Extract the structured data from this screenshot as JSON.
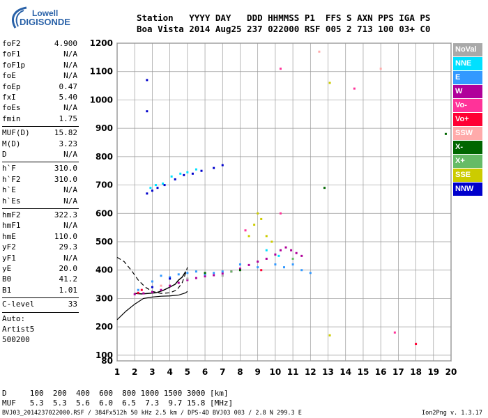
{
  "logo": {
    "line1": "Lowell",
    "line2": "DIGISONDE"
  },
  "header": {
    "line1": "Station   YYYY DAY   DDD HHMMSS P1  FFS S AXN PPS IGA PS",
    "line2": "Boa Vista 2014 Aug25 237 022000 RSF 005 2 713 100 03+ C0"
  },
  "params": {
    "group1": [
      {
        "k": "foF2",
        "v": "4.900"
      },
      {
        "k": "foF1",
        "v": "N/A"
      },
      {
        "k": "foF1p",
        "v": "N/A"
      },
      {
        "k": "foE",
        "v": "N/A"
      },
      {
        "k": "foEp",
        "v": "0.47"
      },
      {
        "k": "fxI",
        "v": "5.40"
      },
      {
        "k": "foEs",
        "v": "N/A"
      },
      {
        "k": "fmin",
        "v": "1.75"
      }
    ],
    "group2": [
      {
        "k": "MUF(D)",
        "v": "15.82"
      },
      {
        "k": "M(D)",
        "v": "3.23"
      },
      {
        "k": "D",
        "v": "N/A"
      }
    ],
    "group3": [
      {
        "k": "h`F",
        "v": "310.0"
      },
      {
        "k": "h`F2",
        "v": "310.0"
      },
      {
        "k": "h`E",
        "v": "N/A"
      },
      {
        "k": "h`Es",
        "v": "N/A"
      }
    ],
    "group4": [
      {
        "k": "hmF2",
        "v": "322.3"
      },
      {
        "k": "hmF1",
        "v": "N/A"
      },
      {
        "k": "hmE",
        "v": "110.0"
      },
      {
        "k": "yF2",
        "v": "29.3"
      },
      {
        "k": "yF1",
        "v": "N/A"
      },
      {
        "k": "yE",
        "v": "20.0"
      },
      {
        "k": "B0",
        "v": "41.2"
      },
      {
        "k": "B1",
        "v": "1.01"
      }
    ],
    "clevel": {
      "k": "C-level",
      "v": "33"
    },
    "auto": [
      "Auto:",
      "Artist5",
      "500200"
    ]
  },
  "legend": [
    {
      "label": "NoVal",
      "color": "#a9a9a9"
    },
    {
      "label": "NNE",
      "color": "#00e0ff"
    },
    {
      "label": "E",
      "color": "#3399ff"
    },
    {
      "label": "W",
      "color": "#b0009a"
    },
    {
      "label": "Vo-",
      "color": "#ff3399"
    },
    {
      "label": "Vo+",
      "color": "#ff0033"
    },
    {
      "label": "SSW",
      "color": "#ffaaaa"
    },
    {
      "label": "X-",
      "color": "#006600"
    },
    {
      "label": "X+",
      "color": "#66bb66"
    },
    {
      "label": "SSE",
      "color": "#cccc00"
    },
    {
      "label": "NNW",
      "color": "#0000cc"
    }
  ],
  "bottom": {
    "line1": "D     100  200  400  600  800 1000 1500 3000 [km]",
    "line2": "MUF   5.3  5.3  5.6  6.0  6.5  7.3  9.7 15.8 [MHz]"
  },
  "footer": {
    "left": "BVJ03_2014237022000.RSF / 384Fx512h 50 kHz 2.5 km / DPS-4D BVJ03 003 / 2.8 N 299.3 E",
    "right": "Ion2Png v. 1.3.17"
  },
  "chart_data": {
    "type": "scatter",
    "title": "",
    "xlabel": "",
    "ylabel": "",
    "xlim": [
      1,
      20
    ],
    "ylim": [
      80,
      1200
    ],
    "x_ticks": [
      1,
      2,
      3,
      4,
      5,
      6,
      7,
      8,
      9,
      10,
      11,
      12,
      13,
      14,
      15,
      16,
      17,
      18,
      19,
      20
    ],
    "y_ticks": [
      80,
      100,
      200,
      300,
      400,
      500,
      600,
      700,
      800,
      900,
      1000,
      1100,
      1200
    ],
    "grid": true,
    "series": [
      {
        "name": "W",
        "color": "#b0009a",
        "points": [
          [
            2.0,
            315
          ],
          [
            2.5,
            318
          ],
          [
            3.0,
            322
          ],
          [
            3.5,
            330
          ],
          [
            4.0,
            345
          ],
          [
            4.5,
            355
          ],
          [
            5.0,
            365
          ],
          [
            5.5,
            372
          ],
          [
            6.0,
            378
          ],
          [
            6.5,
            382
          ],
          [
            7.0,
            388
          ],
          [
            7.5,
            395
          ],
          [
            8.0,
            405
          ],
          [
            8.5,
            418
          ],
          [
            9.0,
            430
          ],
          [
            9.5,
            440
          ],
          [
            10.0,
            455
          ],
          [
            10.3,
            470
          ],
          [
            10.6,
            480
          ],
          [
            10.9,
            470
          ],
          [
            11.2,
            460
          ],
          [
            11.5,
            450
          ]
        ]
      },
      {
        "name": "E",
        "color": "#3399ff",
        "points": [
          [
            2.2,
            330
          ],
          [
            3.0,
            360
          ],
          [
            3.5,
            380
          ],
          [
            4.0,
            375
          ],
          [
            4.5,
            385
          ],
          [
            5.0,
            390
          ],
          [
            5.5,
            395
          ],
          [
            6.0,
            385
          ],
          [
            6.5,
            390
          ],
          [
            7.0,
            395
          ],
          [
            8.0,
            420
          ],
          [
            9.0,
            410
          ],
          [
            10.0,
            420
          ],
          [
            10.5,
            410
          ],
          [
            11.0,
            420
          ],
          [
            11.5,
            400
          ],
          [
            12.0,
            390
          ]
        ]
      },
      {
        "name": "NNE",
        "color": "#00e0ff",
        "points": [
          [
            2.9,
            690
          ],
          [
            3.2,
            700
          ],
          [
            3.6,
            705
          ],
          [
            4.1,
            730
          ],
          [
            4.6,
            740
          ],
          [
            5.0,
            745
          ],
          [
            5.5,
            755
          ],
          [
            9.5,
            470
          ],
          [
            10.2,
            450
          ]
        ]
      },
      {
        "name": "NNW",
        "color": "#0000cc",
        "points": [
          [
            2.7,
            670
          ],
          [
            3.0,
            680
          ],
          [
            3.3,
            690
          ],
          [
            3.7,
            700
          ],
          [
            4.3,
            720
          ],
          [
            4.8,
            735
          ],
          [
            5.3,
            740
          ],
          [
            5.8,
            750
          ],
          [
            6.5,
            760
          ],
          [
            7.0,
            770
          ],
          [
            2.7,
            1070
          ],
          [
            2.7,
            960
          ],
          [
            3.0,
            340
          ],
          [
            4.0,
            370
          ]
        ]
      },
      {
        "name": "SSE",
        "color": "#cccc00",
        "points": [
          [
            8.5,
            520
          ],
          [
            8.8,
            560
          ],
          [
            9.0,
            600
          ],
          [
            9.2,
            580
          ],
          [
            9.5,
            520
          ],
          [
            9.8,
            500
          ],
          [
            13.1,
            1060
          ],
          [
            13.1,
            170
          ]
        ]
      },
      {
        "name": "Vo-",
        "color": "#ff3399",
        "points": [
          [
            8.3,
            540
          ],
          [
            10.3,
            1110
          ],
          [
            10.3,
            600
          ],
          [
            14.5,
            1040
          ],
          [
            16.8,
            180
          ]
        ]
      },
      {
        "name": "Vo+",
        "color": "#ff0033",
        "points": [
          [
            2.2,
            320
          ],
          [
            2.4,
            330
          ],
          [
            9.2,
            400
          ],
          [
            18.0,
            140
          ]
        ]
      },
      {
        "name": "X-",
        "color": "#006600",
        "points": [
          [
            6.0,
            390
          ],
          [
            8.0,
            400
          ],
          [
            12.8,
            690
          ],
          [
            19.7,
            880
          ]
        ]
      },
      {
        "name": "X+",
        "color": "#66bb66",
        "points": [
          [
            7.5,
            395
          ],
          [
            11.0,
            440
          ]
        ]
      },
      {
        "name": "SSW",
        "color": "#ffaaaa",
        "points": [
          [
            3.5,
            345
          ],
          [
            12.5,
            1170
          ],
          [
            16.0,
            1110
          ]
        ]
      },
      {
        "name": "NoVal",
        "color": "#a9a9a9",
        "points": [
          [
            5.0,
            370
          ],
          [
            7.0,
            380
          ]
        ]
      }
    ],
    "profile_solid": [
      [
        1.0,
        225
      ],
      [
        1.5,
        255
      ],
      [
        2.0,
        280
      ],
      [
        2.5,
        300
      ],
      [
        3.0,
        305
      ],
      [
        3.5,
        308
      ],
      [
        4.0,
        309
      ],
      [
        4.5,
        312
      ],
      [
        4.9,
        320
      ],
      [
        5.0,
        325
      ]
    ],
    "profile_dashed": [
      [
        1.0,
        445
      ],
      [
        1.4,
        430
      ],
      [
        1.8,
        400
      ],
      [
        2.2,
        365
      ],
      [
        2.6,
        340
      ],
      [
        3.0,
        325
      ],
      [
        3.5,
        318
      ],
      [
        4.0,
        320
      ],
      [
        4.4,
        330
      ],
      [
        4.7,
        355
      ],
      [
        4.9,
        390
      ],
      [
        5.0,
        410
      ]
    ],
    "trace": [
      [
        2.0,
        318
      ],
      [
        2.4,
        316
      ],
      [
        2.8,
        318
      ],
      [
        3.2,
        320
      ],
      [
        3.6,
        328
      ],
      [
        4.0,
        340
      ],
      [
        4.3,
        350
      ],
      [
        4.5,
        365
      ],
      [
        4.7,
        375
      ],
      [
        4.9,
        395
      ]
    ]
  }
}
